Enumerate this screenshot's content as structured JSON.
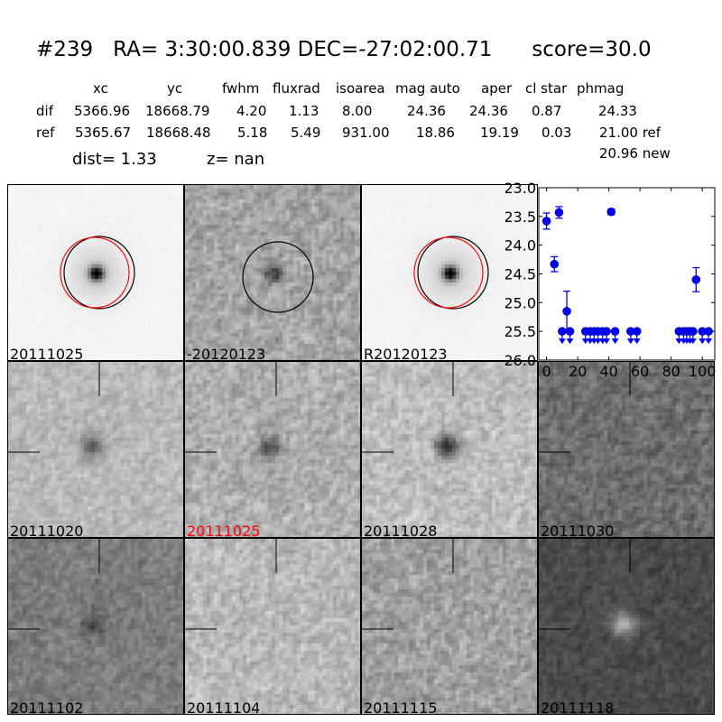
{
  "title": {
    "id": "#239",
    "ra": "RA= 3:30:00.839",
    "dec": "DEC=-27:02:00.71",
    "score": "score=30.0"
  },
  "table": {
    "headers": [
      "xc",
      "yc",
      "fwhm",
      "fluxrad",
      "isoarea",
      "mag auto",
      "aper",
      "cl star",
      "phmag"
    ],
    "rows": [
      {
        "label": "dif",
        "values": [
          "5366.96",
          "18668.79",
          "4.20",
          "1.13",
          "8.00",
          "24.36",
          "24.36",
          "0.87",
          "24.33"
        ]
      },
      {
        "label": "ref",
        "values": [
          "5365.67",
          "18668.48",
          "5.18",
          "5.49",
          "931.00",
          "18.86",
          "19.19",
          "0.03",
          "21.00 ref"
        ]
      }
    ],
    "extra": "20.96 new"
  },
  "dist": "dist=  1.33",
  "z": "z=   nan",
  "panels": [
    {
      "label": "20111025",
      "label_color": "#000000"
    },
    {
      "label": "-20120123",
      "label_color": "#000000"
    },
    {
      "label": "R20120123",
      "label_color": "#000000"
    },
    {
      "label": "20111020",
      "label_color": "#000000"
    },
    {
      "label": "20111025",
      "label_color": "#ff0000"
    },
    {
      "label": "20111028",
      "label_color": "#000000"
    },
    {
      "label": "20111030",
      "label_color": "#000000"
    },
    {
      "label": "20111102",
      "label_color": "#000000"
    },
    {
      "label": "20111104",
      "label_color": "#000000"
    },
    {
      "label": "20111115",
      "label_color": "#000000"
    },
    {
      "label": "20111118",
      "label_color": "#000000"
    }
  ],
  "chart_data": {
    "type": "scatter",
    "xlim": [
      -5,
      108
    ],
    "ylim": [
      26.0,
      23.0
    ],
    "y_inverted": true,
    "xticks": [
      "0",
      "20",
      "40",
      "60",
      "80",
      "100"
    ],
    "yticks": [
      "23.0",
      "23.5",
      "24.0",
      "24.5",
      "25.0",
      "25.5",
      "26.0"
    ],
    "color": "#0000ff",
    "detections": [
      {
        "x": 0,
        "y": 23.58,
        "err": 0.14
      },
      {
        "x": 5,
        "y": 24.33,
        "err": 0.13
      },
      {
        "x": 8,
        "y": 23.43,
        "err": 0.1
      },
      {
        "x": 13,
        "y": 25.15,
        "err_up": 0.35,
        "err_down": 0.35
      },
      {
        "x": 41.5,
        "y": 23.42,
        "err": 0.05
      },
      {
        "x": 96,
        "y": 24.6,
        "err": 0.21
      }
    ],
    "upper_limits": {
      "y": 25.5,
      "x": [
        10,
        15,
        25,
        28,
        30.5,
        33,
        36,
        38.5,
        44,
        54,
        58,
        85,
        88,
        90,
        92,
        94,
        100,
        104
      ]
    }
  }
}
